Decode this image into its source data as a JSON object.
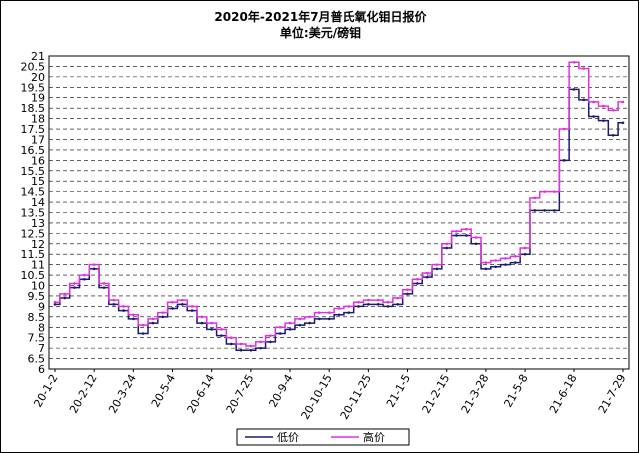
{
  "chart_data": {
    "type": "line",
    "title": "2020年-2021年7月普氏氧化钼日报价",
    "subtitle": "单位:美元/磅钼",
    "y_ticks": [
      "21",
      "20.5",
      "20",
      "19.5",
      "19",
      "18.5",
      "18",
      "17.5",
      "17",
      "16.5",
      "16",
      "15.5",
      "15",
      "14.5",
      "14",
      "13.5",
      "13",
      "12.5",
      "12",
      "11.5",
      "11",
      "10.5",
      "10",
      "9.5",
      "9",
      "8.5",
      "8",
      "7.5",
      "7",
      "6.5",
      "6"
    ],
    "ylim": [
      6,
      21
    ],
    "x_labels": [
      "20-1-2",
      "20-2-12",
      "20-3-24",
      "20-5-4",
      "20-6-14",
      "20-7-25",
      "20-9-4",
      "20-10-15",
      "20-11-25",
      "21-1-5",
      "21-2-15",
      "21-3-28",
      "21-5-8",
      "21-6-18",
      "21-7-29"
    ],
    "grid": true,
    "legend_position": "bottom",
    "colors": {
      "low": "#1a1a6e",
      "high": "#e030e0",
      "grid": "#000000"
    },
    "x": [
      "20-1-2",
      "20-1-13",
      "20-1-23",
      "20-2-3",
      "20-2-12",
      "20-2-21",
      "20-3-3",
      "20-3-13",
      "20-3-24",
      "20-4-2",
      "20-4-14",
      "20-4-23",
      "20-5-4",
      "20-5-14",
      "20-5-25",
      "20-6-3",
      "20-6-14",
      "20-6-23",
      "20-7-3",
      "20-7-14",
      "20-7-25",
      "20-8-5",
      "20-8-14",
      "20-8-25",
      "20-9-4",
      "20-9-15",
      "20-9-24",
      "20-10-5",
      "20-10-15",
      "20-10-26",
      "20-11-4",
      "20-11-16",
      "20-11-25",
      "20-12-4",
      "20-12-15",
      "20-12-24",
      "21-1-5",
      "21-1-14",
      "21-1-25",
      "21-2-4",
      "21-2-15",
      "21-2-24",
      "21-3-5",
      "21-3-16",
      "21-3-28",
      "21-4-7",
      "21-4-16",
      "21-4-27",
      "21-5-8",
      "21-5-17",
      "21-5-26",
      "21-6-4",
      "21-6-11",
      "21-6-18",
      "21-6-28",
      "21-7-7",
      "21-7-16",
      "21-7-22",
      "21-7-29"
    ],
    "series": [
      {
        "name": "低价",
        "values": [
          9.1,
          9.4,
          9.9,
          10.3,
          10.8,
          9.9,
          9.1,
          8.8,
          8.4,
          7.7,
          8.2,
          8.5,
          8.9,
          9.1,
          8.8,
          8.2,
          7.9,
          7.6,
          7.2,
          6.9,
          6.9,
          7.0,
          7.3,
          7.7,
          7.9,
          8.1,
          8.2,
          8.4,
          8.4,
          8.6,
          8.7,
          9.0,
          9.1,
          9.1,
          9.0,
          9.1,
          9.6,
          10.1,
          10.4,
          10.8,
          11.8,
          12.4,
          12.4,
          12.0,
          10.8,
          10.9,
          11.0,
          11.1,
          11.5,
          13.6,
          13.6,
          13.6,
          16.0,
          19.4,
          18.9,
          18.1,
          17.9,
          17.2,
          17.8
        ]
      },
      {
        "name": "高价",
        "values": [
          9.2,
          9.6,
          10.1,
          10.5,
          11.0,
          10.1,
          9.3,
          9.0,
          8.6,
          8.1,
          8.4,
          8.7,
          9.2,
          9.3,
          9.0,
          8.5,
          8.2,
          7.9,
          7.5,
          7.2,
          7.1,
          7.3,
          7.6,
          8.0,
          8.2,
          8.4,
          8.5,
          8.7,
          8.7,
          8.9,
          9.0,
          9.2,
          9.3,
          9.3,
          9.2,
          9.4,
          9.8,
          10.3,
          10.6,
          11.0,
          12.0,
          12.6,
          12.7,
          12.3,
          11.1,
          11.2,
          11.3,
          11.4,
          11.8,
          14.2,
          14.5,
          14.5,
          17.5,
          20.7,
          20.4,
          18.8,
          18.6,
          18.4,
          18.8
        ]
      }
    ]
  }
}
